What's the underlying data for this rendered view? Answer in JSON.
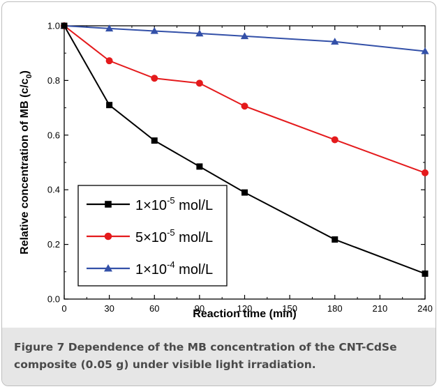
{
  "chart_data": {
    "type": "line",
    "xlabel": "Reaction time (min)",
    "ylabel": "Relative concentration of MB (c/c",
    "ylabel_sub": "0",
    "ylabel_close": ")",
    "xlim": [
      0,
      240
    ],
    "ylim": [
      0.0,
      1.0
    ],
    "xticks": [
      0,
      30,
      60,
      90,
      120,
      150,
      180,
      210,
      240
    ],
    "yticks": [
      0.0,
      0.2,
      0.4,
      0.6,
      0.8,
      1.0
    ],
    "xtick_labels": [
      "0",
      "30",
      "60",
      "90",
      "120",
      "150",
      "180",
      "210",
      "240"
    ],
    "ytick_labels": [
      "0.0",
      "0.2",
      "0.4",
      "0.6",
      "0.8",
      "1.0"
    ],
    "grid": false,
    "legend_position": "bottom-left",
    "series": [
      {
        "name_base": "1×10",
        "name_exp": "-5",
        "name_unit": " mol/L",
        "color": "#000000",
        "marker": "square",
        "x": [
          0,
          30,
          60,
          90,
          120,
          180,
          240
        ],
        "y": [
          1.0,
          0.71,
          0.58,
          0.485,
          0.39,
          0.218,
          0.093
        ]
      },
      {
        "name_base": "5×10",
        "name_exp": "-5",
        "name_unit": " mol/L",
        "color": "#e41a1c",
        "marker": "circle",
        "x": [
          0,
          30,
          60,
          90,
          120,
          180,
          240
        ],
        "y": [
          1.0,
          0.872,
          0.808,
          0.79,
          0.706,
          0.583,
          0.462
        ]
      },
      {
        "name_base": "1×10",
        "name_exp": "-4",
        "name_unit": " mol/L",
        "color": "#3350a8",
        "marker": "triangle",
        "x": [
          0,
          30,
          60,
          90,
          120,
          180,
          240
        ],
        "y": [
          1.0,
          0.99,
          0.981,
          0.972,
          0.962,
          0.942,
          0.907
        ]
      }
    ]
  },
  "caption": {
    "label": "Figure 7",
    "text": " Dependence of the MB concentration of the CNT-CdSe composite (0.05 g) under visible light irradiation."
  }
}
